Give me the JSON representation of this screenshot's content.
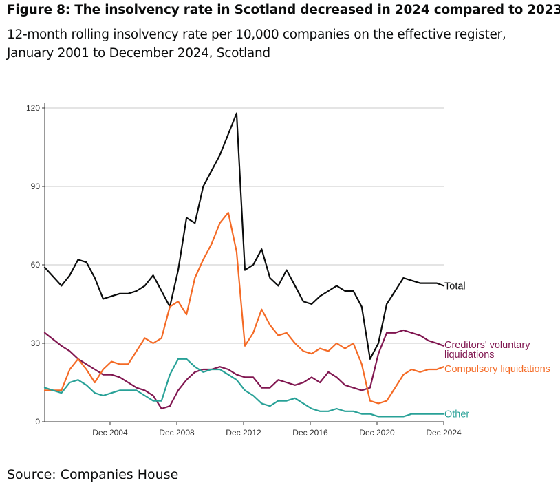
{
  "title": "Figure 8: The insolvency rate in Scotland decreased in 2024 compared to 2023.",
  "subtitle": "12-month rolling insolvency rate per 10,000 companies on the effective register, January 2001 to December 2024, Scotland",
  "source": "Source: Companies House",
  "chart_data": {
    "type": "line",
    "title": "Figure 8: The insolvency rate in Scotland decreased in 2024 compared to 2023.",
    "subtitle": "12-month rolling insolvency rate per 10,000 companies on the effective register, January 2001 to December 2024, Scotland",
    "xlabel": "",
    "ylabel": "",
    "xlim": [
      "Jan 2001",
      "Dec 2024"
    ],
    "ylim": [
      0,
      120
    ],
    "yticks": [
      0,
      30,
      60,
      90,
      120
    ],
    "xtick_labels": [
      "Dec 2004",
      "Dec 2008",
      "Dec 2012",
      "Dec 2016",
      "Dec 2020",
      "Dec 2024"
    ],
    "grid": "horizontal",
    "legend": "direct labels at line ends (right)",
    "x": [
      "Jan 2001",
      "Jan 2002",
      "Jul 2002",
      "Jan 2003",
      "Jul 2003",
      "Jan 2004",
      "Jul 2004",
      "Jan 2005",
      "Jul 2005",
      "Jan 2006",
      "Jul 2006",
      "Jan 2007",
      "Jul 2007",
      "Jan 2008",
      "Jul 2008",
      "Jan 2009",
      "Jul 2009",
      "Jan 2010",
      "Jul 2010",
      "Jan 2011",
      "Jul 2011",
      "Jan 2012",
      "Jul 2012",
      "Jan 2013",
      "Jul 2013",
      "Jan 2014",
      "Jul 2014",
      "Jan 2015",
      "Jul 2015",
      "Jan 2016",
      "Jul 2016",
      "Jan 2017",
      "Jul 2017",
      "Jan 2018",
      "Jul 2018",
      "Jan 2019",
      "Jul 2019",
      "Jan 2020",
      "Jul 2020",
      "Jan 2021",
      "Jul 2021",
      "Jan 2022",
      "Jul 2022",
      "Jan 2023",
      "Jul 2023",
      "Jan 2024",
      "Jul 2024",
      "Dec 2024"
    ],
    "series": [
      {
        "name": "Total",
        "color": "#0b0c0c",
        "values": [
          59,
          52,
          56,
          62,
          61,
          55,
          47,
          48,
          49,
          49,
          50,
          52,
          56,
          50,
          44,
          58,
          78,
          76,
          90,
          96,
          102,
          110,
          118,
          58,
          60,
          66,
          55,
          52,
          58,
          52,
          46,
          45,
          48,
          50,
          52,
          50,
          50,
          44,
          24,
          30,
          45,
          50,
          55,
          54,
          53,
          53,
          53,
          52
        ]
      },
      {
        "name": "Creditors' voluntary liquidations",
        "color": "#801650",
        "values": [
          34,
          29,
          27,
          24,
          22,
          20,
          18,
          18,
          17,
          15,
          13,
          12,
          10,
          5,
          6,
          12,
          16,
          19,
          20,
          20,
          21,
          20,
          18,
          17,
          17,
          13,
          13,
          16,
          15,
          14,
          15,
          17,
          15,
          19,
          17,
          14,
          13,
          12,
          13,
          26,
          34,
          34,
          35,
          34,
          33,
          31,
          30,
          29
        ]
      },
      {
        "name": "Compulsory liquidations",
        "color": "#f46a25",
        "values": [
          12,
          12,
          20,
          24,
          20,
          15,
          20,
          23,
          22,
          22,
          27,
          32,
          30,
          32,
          44,
          46,
          41,
          55,
          62,
          68,
          76,
          80,
          65,
          29,
          34,
          43,
          37,
          33,
          34,
          30,
          27,
          26,
          28,
          27,
          30,
          28,
          30,
          22,
          8,
          7,
          8,
          13,
          18,
          20,
          19,
          20,
          20,
          21
        ]
      },
      {
        "name": "Other",
        "color": "#28a197",
        "values": [
          13,
          11,
          15,
          16,
          14,
          11,
          10,
          11,
          12,
          12,
          12,
          10,
          8,
          8,
          18,
          24,
          24,
          21,
          19,
          20,
          20,
          18,
          16,
          12,
          10,
          7,
          6,
          8,
          8,
          9,
          7,
          5,
          4,
          4,
          5,
          4,
          4,
          3,
          3,
          2,
          2,
          2,
          2,
          3,
          3,
          3,
          3,
          3
        ]
      }
    ],
    "end_labels": [
      "Total",
      "Creditors' voluntary liquidations",
      "Compulsory liquidations",
      "Other"
    ]
  }
}
